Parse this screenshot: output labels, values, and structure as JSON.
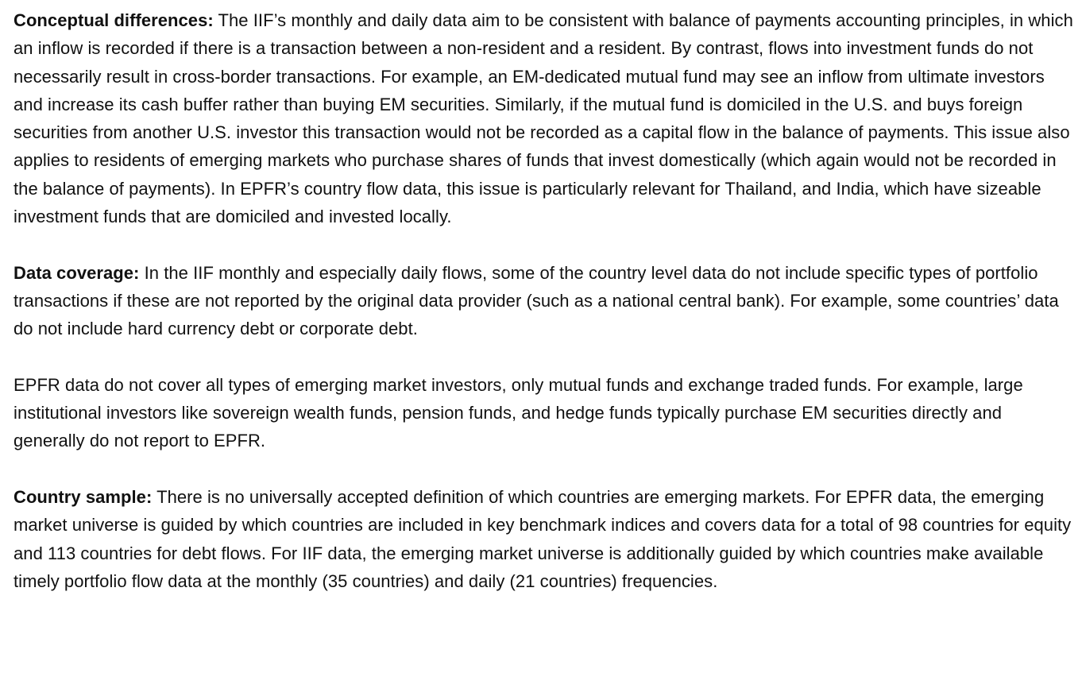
{
  "sections": [
    {
      "heading": "Conceptual differences:",
      "text": " The IIF’s monthly and daily data aim to be consistent with balance of payments accounting principles, in which an inflow is recorded if there is a transaction between a non-resident and a resident. By contrast, flows into investment funds do not necessarily result in cross-border transactions. For example, an EM-dedicated mutual fund may see an inflow from ultimate investors and increase its cash buffer rather than buying EM securities. Similarly, if the mutual fund is domiciled in the U.S. and buys foreign securities from another U.S. investor this transaction would not be recorded as a capital flow in the balance of payments. This issue also applies to residents of emerging markets who purchase shares of funds that invest domestically (which again would not be recorded in the balance of payments). In EPFR’s country flow data, this issue is particularly relevant for Thailand, and India, which have sizeable investment funds that are domiciled and invested locally."
    },
    {
      "heading": "Data coverage:",
      "text": " In the IIF monthly and especially daily flows, some of the country level data do not include specific types of portfolio transactions if these are not reported by the original data provider (such as a national central bank). For example, some countries’ data do not include hard currency debt or corporate debt."
    },
    {
      "heading": "",
      "text": "EPFR data do not cover all types of emerging market investors, only mutual funds and exchange traded funds. For example, large institutional investors like sovereign wealth funds, pension funds, and hedge funds typically purchase EM securities directly and generally do not report to EPFR."
    },
    {
      "heading": "Country sample:",
      "text": " There is no universally accepted definition of which countries are emerging markets. For EPFR data, the emerging market universe is guided by which countries are included in key benchmark indices and covers data for a total of 98 countries for equity and 113 countries for debt flows. For IIF data, the emerging market universe is additionally guided by which countries make available timely portfolio flow data at the monthly (35 countries) and daily (21 countries) frequencies."
    }
  ]
}
